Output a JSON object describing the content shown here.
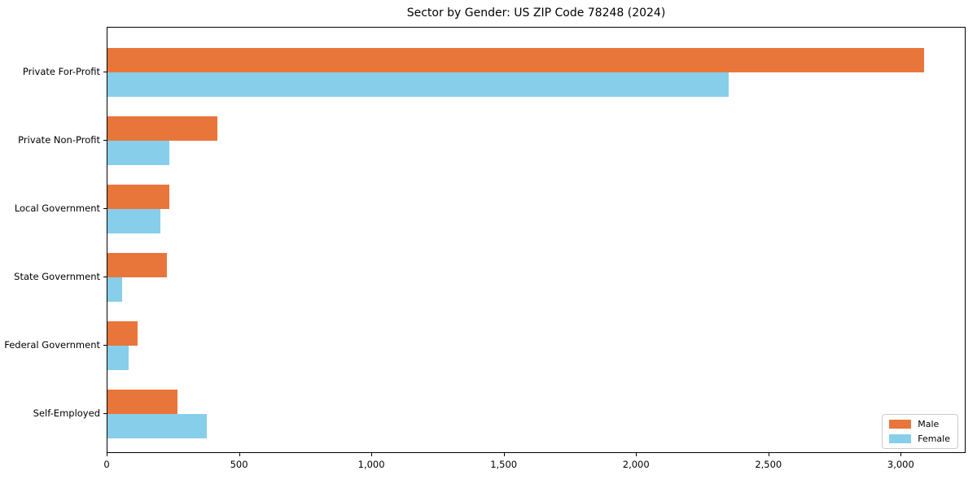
{
  "chart_data": {
    "type": "bar",
    "orientation": "horizontal",
    "title": "Sector by Gender: US ZIP Code 78248 (2024)",
    "categories": [
      "Private For-Profit",
      "Private Non-Profit",
      "Local Government",
      "State Government",
      "Federal Government",
      "Self-Employed"
    ],
    "series": [
      {
        "name": "Male",
        "color": "#e8763b",
        "values": [
          3090,
          415,
          235,
          225,
          115,
          265
        ]
      },
      {
        "name": "Female",
        "color": "#87ceeb",
        "values": [
          2350,
          235,
          200,
          55,
          80,
          375
        ]
      }
    ],
    "xlabel": "",
    "ylabel": "",
    "xlim": [
      0,
      3245
    ],
    "x_ticks": [
      0,
      500,
      1000,
      1500,
      2000,
      2500,
      3000
    ],
    "x_tick_labels": [
      "0",
      "500",
      "1,000",
      "1,500",
      "2,000",
      "2,500",
      "3,000"
    ],
    "legend": {
      "position": "lower right",
      "entries": [
        "Male",
        "Female"
      ]
    },
    "grid": false,
    "background_color": "#ffffff",
    "spine_color": "#000000"
  }
}
